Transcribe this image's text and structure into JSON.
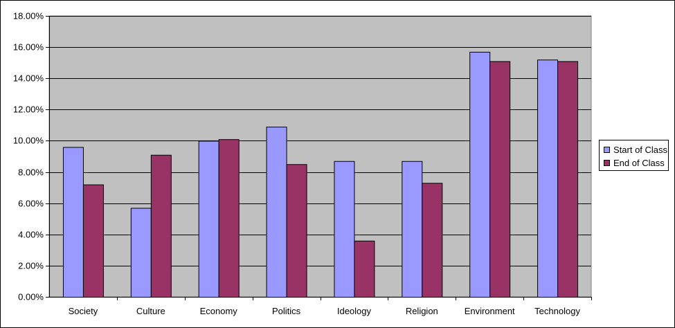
{
  "chart_data": {
    "type": "bar",
    "categories": [
      "Society",
      "Culture",
      "Economy",
      "Politics",
      "Ideology",
      "Religion",
      "Environment",
      "Technology"
    ],
    "series": [
      {
        "name": "Start of Class",
        "color": "#9999ff",
        "values": [
          9.6,
          5.7,
          10.0,
          10.9,
          8.7,
          8.7,
          15.7,
          15.2
        ]
      },
      {
        "name": "End of Class",
        "color": "#993366",
        "values": [
          7.2,
          9.1,
          10.1,
          8.5,
          3.6,
          7.3,
          15.1,
          15.1
        ]
      }
    ],
    "ylim": [
      0,
      18
    ],
    "yticks": [
      "0.00%",
      "2.00%",
      "4.00%",
      "6.00%",
      "8.00%",
      "10.00%",
      "12.00%",
      "14.00%",
      "16.00%",
      "18.00%"
    ],
    "grid": true,
    "legend_position": "right",
    "plot_background": "#c0c0c0"
  },
  "legend": {
    "items": [
      {
        "label": "Start of Class",
        "color": "#9999ff"
      },
      {
        "label": "End of Class",
        "color": "#993366"
      }
    ]
  }
}
